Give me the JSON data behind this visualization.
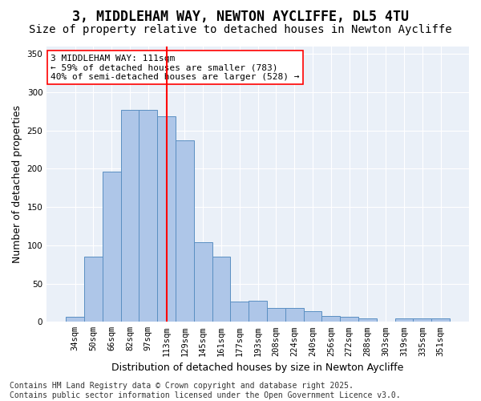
{
  "title": "3, MIDDLEHAM WAY, NEWTON AYCLIFFE, DL5 4TU",
  "subtitle": "Size of property relative to detached houses in Newton Aycliffe",
  "xlabel": "Distribution of detached houses by size in Newton Aycliffe",
  "ylabel": "Number of detached properties",
  "categories": [
    "34sqm",
    "50sqm",
    "66sqm",
    "82sqm",
    "97sqm",
    "113sqm",
    "129sqm",
    "145sqm",
    "161sqm",
    "177sqm",
    "193sqm",
    "208sqm",
    "224sqm",
    "240sqm",
    "256sqm",
    "272sqm",
    "288sqm",
    "303sqm",
    "319sqm",
    "335sqm",
    "351sqm"
  ],
  "bar_values": [
    7,
    85,
    196,
    277,
    277,
    268,
    237,
    104,
    85,
    27,
    28,
    18,
    18,
    14,
    8,
    7,
    4,
    0,
    4,
    4,
    4
  ],
  "bar_color": "#aec6e8",
  "bar_edge_color": "#5a8fc2",
  "vline_x": 5,
  "vline_color": "red",
  "annotation_text": "3 MIDDLEHAM WAY: 111sqm\n← 59% of detached houses are smaller (783)\n40% of semi-detached houses are larger (528) →",
  "ylim": [
    0,
    360
  ],
  "yticks": [
    0,
    50,
    100,
    150,
    200,
    250,
    300,
    350
  ],
  "background_color": "#eaf0f8",
  "footer_text": "Contains HM Land Registry data © Crown copyright and database right 2025.\nContains public sector information licensed under the Open Government Licence v3.0.",
  "title_fontsize": 12,
  "subtitle_fontsize": 10,
  "xlabel_fontsize": 9,
  "ylabel_fontsize": 9,
  "tick_fontsize": 7.5,
  "annotation_fontsize": 8,
  "footer_fontsize": 7
}
